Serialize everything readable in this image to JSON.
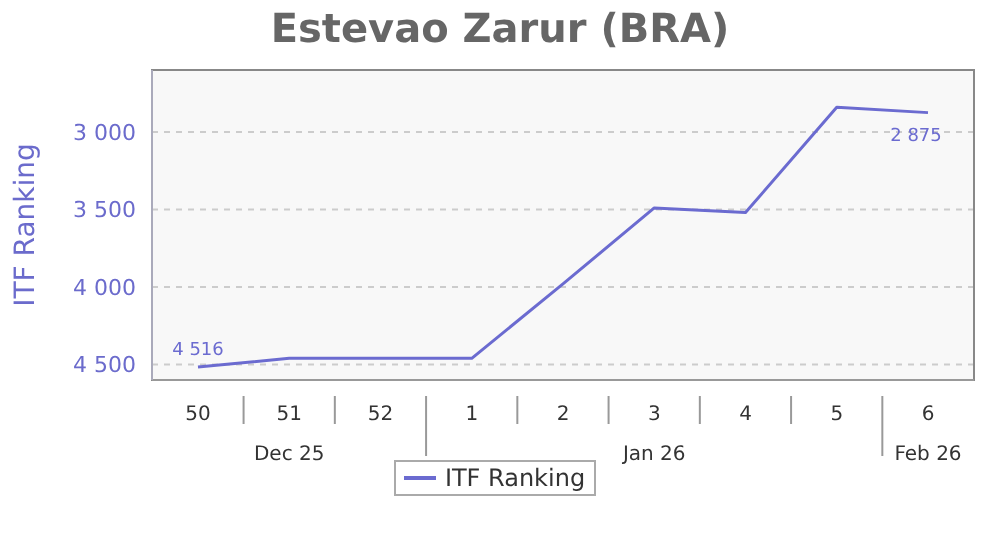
{
  "chart_data": {
    "type": "line",
    "title": "Estevao Zarur (BRA)",
    "ylabel": "ITF Ranking",
    "categories": [
      "50",
      "51",
      "52",
      "1",
      "2",
      "3",
      "4",
      "5",
      "6"
    ],
    "series": [
      {
        "name": "ITF Ranking",
        "color": "#6b6bd0",
        "values": [
          4516,
          4460,
          4460,
          4460,
          3980,
          3490,
          3520,
          2840,
          2875
        ],
        "value_labels": [
          "4 516",
          null,
          null,
          null,
          null,
          null,
          null,
          null,
          "2 875"
        ]
      }
    ],
    "ylim": [
      4600,
      2600
    ],
    "yticks": [
      3000,
      3500,
      4000,
      4500
    ],
    "annotations": [
      "Dec 25",
      "Jan 26",
      "Feb 26"
    ],
    "grid": "y",
    "legend": "bottom",
    "marker": "none",
    "line_style": "solid"
  }
}
